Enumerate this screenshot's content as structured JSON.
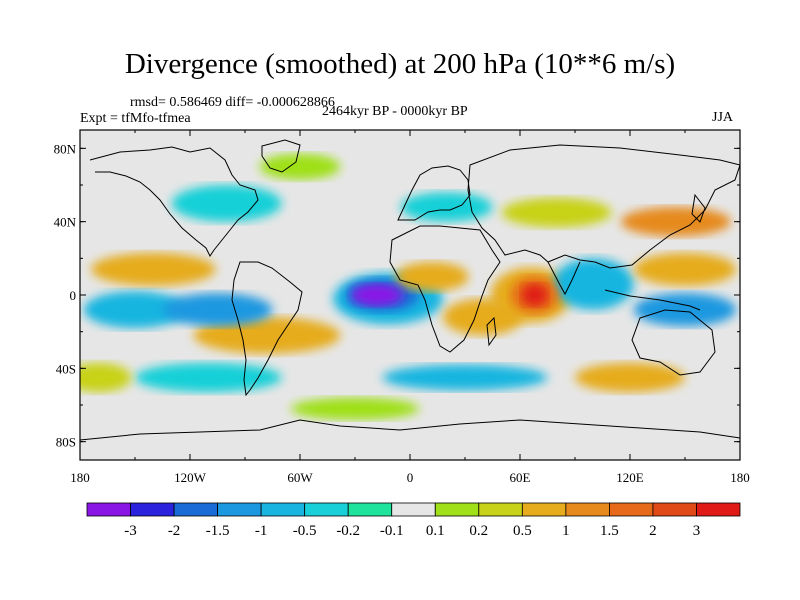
{
  "title": "Divergence (smoothed) at 200 hPa (10**6 m/s)",
  "stats": "rmsd= 0.586469 diff= -0.000628866",
  "experiment": "Expt = tfMfo-tfmea",
  "period": "2464kyr BP - 0000kyr BP",
  "season": "JJA",
  "map": {
    "lon_ticks": [
      "180",
      "120W",
      "60W",
      "0",
      "60E",
      "120E",
      "180"
    ],
    "lat_ticks": [
      "80N",
      "40N",
      "0",
      "40S",
      "80S"
    ],
    "lon_values": [
      -180,
      -120,
      -60,
      0,
      60,
      120,
      180
    ],
    "lat_values": [
      80,
      40,
      0,
      -40,
      -80
    ],
    "lat_range": [
      -90,
      90
    ],
    "lon_range": [
      -180,
      180
    ]
  },
  "colorbar": {
    "labels": [
      "-3",
      "-2",
      "-1.5",
      "-1",
      "-0.5",
      "-0.2",
      "-0.1",
      "0.1",
      "0.2",
      "0.5",
      "1",
      "1.5",
      "2",
      "3"
    ],
    "colors": [
      "#8a16e6",
      "#2a22dc",
      "#1a6bd6",
      "#1c98e0",
      "#19b5e0",
      "#19d0d8",
      "#1ee39c",
      "#e6e6e6",
      "#9fe019",
      "#c8d219",
      "#e6ac1e",
      "#e68a1e",
      "#e66a19",
      "#e04a16",
      "#e01a16"
    ]
  },
  "field_blobs": [
    {
      "lon": -18,
      "lat": 0,
      "rx": 14,
      "ry": 6,
      "level": 0
    },
    {
      "lon": -15,
      "lat": 0,
      "rx": 20,
      "ry": 9,
      "level": 2
    },
    {
      "lon": -12,
      "lat": -2,
      "rx": 30,
      "ry": 14,
      "level": 4
    },
    {
      "lon": 68,
      "lat": 0,
      "rx": 7,
      "ry": 6,
      "level": 14
    },
    {
      "lon": 68,
      "lat": 0,
      "rx": 13,
      "ry": 10,
      "level": 12
    },
    {
      "lon": 66,
      "lat": 0,
      "rx": 22,
      "ry": 15,
      "level": 10
    },
    {
      "lon": -150,
      "lat": -8,
      "rx": 28,
      "ry": 10,
      "level": 4
    },
    {
      "lon": -140,
      "lat": 14,
      "rx": 34,
      "ry": 9,
      "level": 10
    },
    {
      "lon": -105,
      "lat": -8,
      "rx": 30,
      "ry": 9,
      "level": 3
    },
    {
      "lon": -78,
      "lat": -22,
      "rx": 40,
      "ry": 10,
      "level": 10
    },
    {
      "lon": 12,
      "lat": 10,
      "rx": 20,
      "ry": 8,
      "level": 10
    },
    {
      "lon": 40,
      "lat": -12,
      "rx": 22,
      "ry": 10,
      "level": 10
    },
    {
      "lon": 100,
      "lat": 6,
      "rx": 22,
      "ry": 14,
      "level": 4
    },
    {
      "lon": 150,
      "lat": 14,
      "rx": 28,
      "ry": 9,
      "level": 10
    },
    {
      "lon": 150,
      "lat": -8,
      "rx": 28,
      "ry": 9,
      "level": 3
    },
    {
      "lon": 145,
      "lat": 40,
      "rx": 30,
      "ry": 8,
      "level": 11
    },
    {
      "lon": -100,
      "lat": 50,
      "rx": 30,
      "ry": 10,
      "level": 5
    },
    {
      "lon": -60,
      "lat": 70,
      "rx": 22,
      "ry": 7,
      "level": 8
    },
    {
      "lon": 20,
      "lat": 48,
      "rx": 25,
      "ry": 8,
      "level": 5
    },
    {
      "lon": 80,
      "lat": 45,
      "rx": 30,
      "ry": 8,
      "level": 9
    },
    {
      "lon": -110,
      "lat": -45,
      "rx": 40,
      "ry": 8,
      "level": 5
    },
    {
      "lon": 30,
      "lat": -45,
      "rx": 45,
      "ry": 7,
      "level": 4
    },
    {
      "lon": 120,
      "lat": -45,
      "rx": 30,
      "ry": 8,
      "level": 10
    },
    {
      "lon": -170,
      "lat": -45,
      "rx": 18,
      "ry": 8,
      "level": 9
    },
    {
      "lon": -30,
      "lat": -62,
      "rx": 35,
      "ry": 6,
      "level": 8
    }
  ]
}
